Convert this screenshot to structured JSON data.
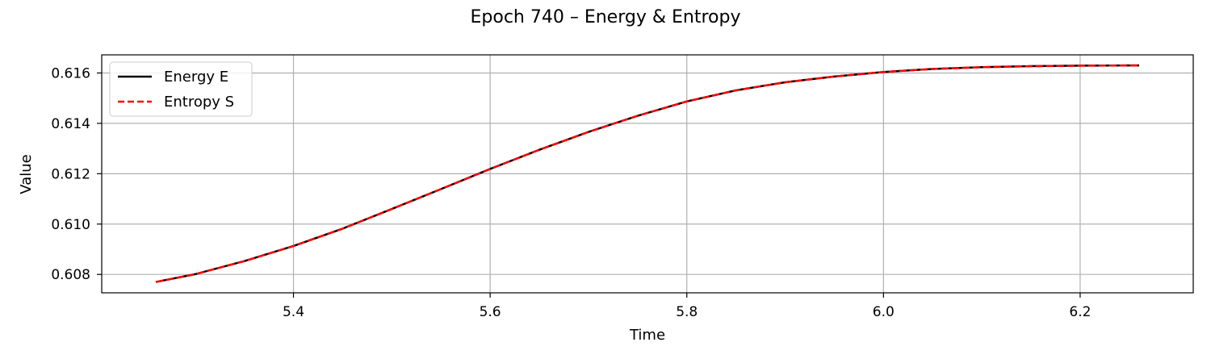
{
  "chart_data": {
    "type": "line",
    "title": "Epoch 740 – Energy & Entropy",
    "xlabel": "Time",
    "ylabel": "Value",
    "xlim": [
      5.205,
      6.315
    ],
    "ylim": [
      0.60727,
      0.61672
    ],
    "xticks": [
      5.4,
      5.6,
      5.8,
      6.0,
      6.2
    ],
    "xtick_labels": [
      "5.4",
      "5.6",
      "5.8",
      "6.0",
      "6.2"
    ],
    "yticks": [
      0.608,
      0.61,
      0.612,
      0.614,
      0.616
    ],
    "ytick_labels": [
      "0.608",
      "0.610",
      "0.612",
      "0.614",
      "0.616"
    ],
    "grid": true,
    "legend_position": "upper-left",
    "x": [
      5.26,
      5.3,
      5.35,
      5.4,
      5.45,
      5.5,
      5.55,
      5.6,
      5.65,
      5.7,
      5.75,
      5.8,
      5.85,
      5.9,
      5.95,
      6.0,
      6.05,
      6.1,
      6.15,
      6.2,
      6.26
    ],
    "series": [
      {
        "name": "Energy E",
        "color": "#000000",
        "style": "solid",
        "values": [
          0.6077,
          0.60801,
          0.60853,
          0.60913,
          0.60982,
          0.6106,
          0.61139,
          0.61219,
          0.61295,
          0.61366,
          0.6143,
          0.61487,
          0.61531,
          0.61563,
          0.61586,
          0.61604,
          0.61616,
          0.61623,
          0.61627,
          0.61629,
          0.6163
        ]
      },
      {
        "name": "Entropy S",
        "color": "#ff0000",
        "style": "dashed",
        "values": [
          0.6077,
          0.60801,
          0.60853,
          0.60913,
          0.60982,
          0.6106,
          0.61139,
          0.61219,
          0.61295,
          0.61366,
          0.6143,
          0.61487,
          0.61531,
          0.61563,
          0.61586,
          0.61604,
          0.61616,
          0.61623,
          0.61627,
          0.61629,
          0.6163
        ]
      }
    ]
  }
}
